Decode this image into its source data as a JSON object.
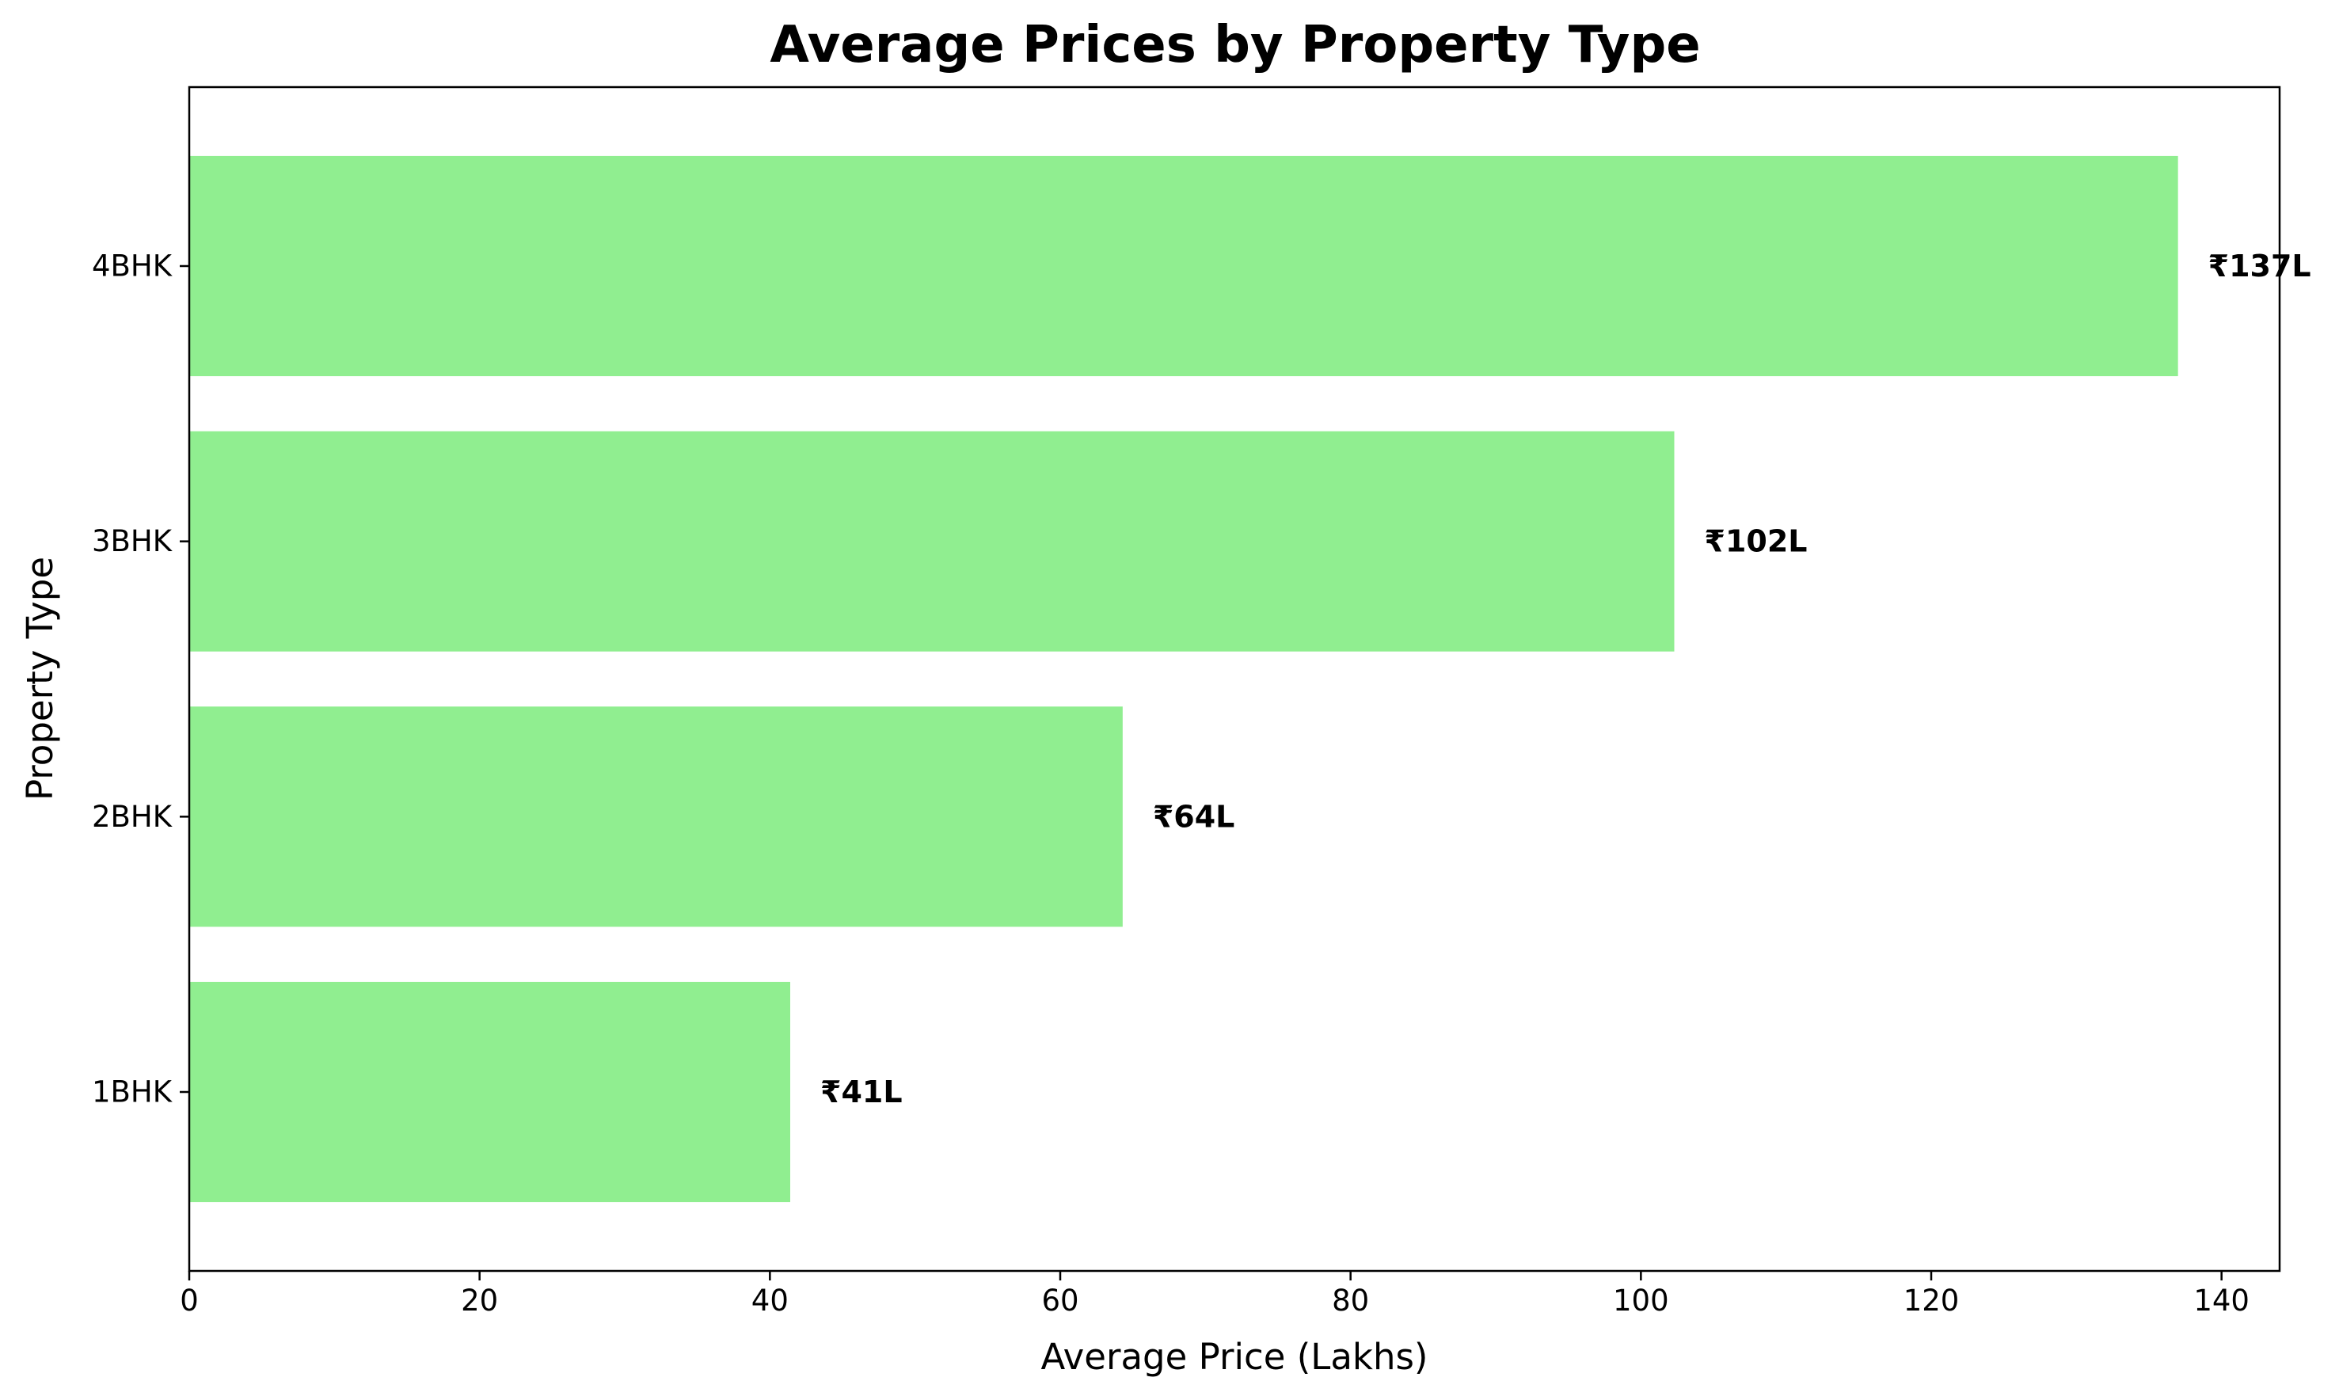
{
  "chart_data": {
    "type": "bar",
    "orientation": "horizontal",
    "title": "Average Prices by Property Type",
    "xlabel": "Average Price (Lakhs)",
    "ylabel": "Property Type",
    "categories": [
      "1BHK",
      "2BHK",
      "3BHK",
      "4BHK"
    ],
    "values": [
      41.4,
      64.3,
      102.3,
      137.0
    ],
    "data_labels": [
      "₹41L",
      "₹64L",
      "₹102L",
      "₹137L"
    ],
    "xlim": [
      0,
      144
    ],
    "xticks": [
      0,
      20,
      40,
      60,
      80,
      100,
      120,
      140
    ],
    "xtick_labels": [
      "0",
      "20",
      "40",
      "60",
      "80",
      "100",
      "120",
      "140"
    ],
    "grid": false,
    "legend": "none",
    "bar_color": "#90ee90"
  }
}
